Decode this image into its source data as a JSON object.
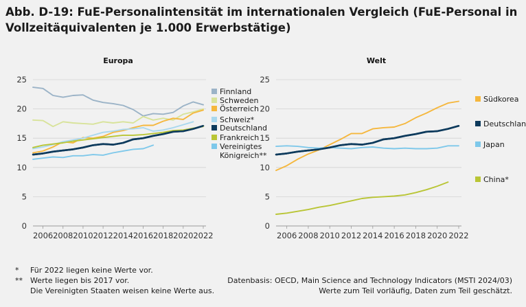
{
  "title": "Abb. D-19: FuE-Personalintensität im internationalen Vergleich (FuE-Personal in Vollzeitäquivalenten je 1.000 Erwerbstätige)",
  "chart_data": [
    {
      "type": "line",
      "title": "Europa",
      "x": [
        2005,
        2006,
        2007,
        2008,
        2009,
        2010,
        2011,
        2012,
        2013,
        2014,
        2015,
        2016,
        2017,
        2018,
        2019,
        2020,
        2021,
        2022
      ],
      "x_ticks": [
        "2006",
        "2008",
        "2010",
        "2012",
        "2014",
        "2016",
        "2018",
        "2020",
        "2022"
      ],
      "ylim": [
        0,
        25
      ],
      "y_ticks": [
        "0",
        "5",
        "10",
        "15",
        "20",
        "25"
      ],
      "grid": true,
      "legend": "right",
      "series": [
        {
          "name": "Finnland",
          "color": "#9bb3c7",
          "values": [
            23.7,
            23.5,
            22.3,
            22.0,
            22.3,
            22.4,
            21.5,
            21.1,
            20.9,
            20.6,
            19.9,
            18.8,
            19.2,
            19.1,
            19.4,
            20.5,
            21.2,
            20.7
          ]
        },
        {
          "name": "Schweden",
          "color": "#d8e39a",
          "values": [
            18.1,
            18.0,
            17.0,
            17.8,
            17.6,
            17.5,
            17.4,
            17.8,
            17.6,
            17.8,
            17.6,
            18.7,
            18.1,
            18.4,
            18.1,
            19.1,
            19.5,
            20.0
          ]
        },
        {
          "name": "Österreich",
          "color": "#f5b73d",
          "values": [
            12.5,
            12.8,
            13.5,
            14.4,
            14.2,
            15.1,
            15.0,
            15.3,
            16.0,
            16.3,
            16.8,
            17.2,
            17.2,
            17.9,
            18.4,
            18.2,
            19.3,
            19.8
          ]
        },
        {
          "name": "Schweiz*",
          "color": "#a9d8ee",
          "values": [
            13.2,
            13.5,
            13.9,
            14.4,
            14.7,
            15.0,
            15.5,
            16.0,
            16.2,
            16.5,
            16.6,
            16.8,
            16.2,
            16.4,
            16.8,
            17.3,
            17.8,
            null
          ]
        },
        {
          "name": "Deutschland",
          "color": "#0d3a5c",
          "values": [
            12.2,
            12.4,
            12.7,
            12.9,
            13.1,
            13.4,
            13.8,
            14.0,
            13.9,
            14.2,
            14.8,
            15.0,
            15.4,
            15.7,
            16.1,
            16.2,
            16.6,
            17.1
          ]
        },
        {
          "name": "Frankreich",
          "color": "#b9c535",
          "values": [
            13.4,
            13.8,
            14.0,
            14.2,
            14.5,
            14.7,
            14.9,
            15.1,
            15.3,
            15.5,
            15.5,
            15.6,
            15.8,
            16.0,
            16.3,
            16.4,
            16.7,
            17.0
          ]
        },
        {
          "name": "Vereinigtes Königreich**",
          "color": "#7ec8ea",
          "values": [
            11.4,
            11.6,
            11.8,
            11.7,
            12.0,
            12.0,
            12.2,
            12.1,
            12.5,
            12.8,
            13.1,
            13.2,
            13.8,
            null,
            null,
            null,
            null,
            null
          ]
        }
      ],
      "legend_labels": [
        [
          "Finnland"
        ],
        [
          "Schweden"
        ],
        [
          "Österreich"
        ],
        [
          "Schweiz*"
        ],
        [
          "Deutschland"
        ],
        [
          "Frankreich"
        ],
        [
          "Vereinigtes",
          "Königreich**"
        ]
      ]
    },
    {
      "type": "line",
      "title": "Welt",
      "x": [
        2005,
        2006,
        2007,
        2008,
        2009,
        2010,
        2011,
        2012,
        2013,
        2014,
        2015,
        2016,
        2017,
        2018,
        2019,
        2020,
        2021,
        2022
      ],
      "x_ticks": [
        "2006",
        "2008",
        "2010",
        "2012",
        "2014",
        "2016",
        "2018",
        "2020",
        "2022"
      ],
      "ylim": [
        0,
        25
      ],
      "y_ticks": [
        "0",
        "5",
        "10",
        "15",
        "20",
        "25"
      ],
      "grid": true,
      "legend": "right",
      "series": [
        {
          "name": "Südkorea",
          "color": "#f5b73d",
          "values": [
            9.5,
            10.3,
            11.4,
            12.3,
            13.0,
            13.9,
            14.8,
            15.8,
            15.8,
            16.6,
            16.8,
            16.9,
            17.5,
            18.5,
            19.3,
            20.2,
            21.0,
            21.3
          ]
        },
        {
          "name": "Deutschland",
          "color": "#0d3a5c",
          "values": [
            12.2,
            12.4,
            12.7,
            12.9,
            13.1,
            13.4,
            13.8,
            14.0,
            13.9,
            14.2,
            14.8,
            15.0,
            15.4,
            15.7,
            16.1,
            16.2,
            16.6,
            17.1
          ]
        },
        {
          "name": "Japan",
          "color": "#7ec8ea",
          "values": [
            13.6,
            13.7,
            13.6,
            13.4,
            13.3,
            13.4,
            13.3,
            13.2,
            13.4,
            13.5,
            13.3,
            13.2,
            13.3,
            13.2,
            13.2,
            13.3,
            13.7,
            13.7
          ]
        },
        {
          "name": "China*",
          "color": "#b9c535",
          "values": [
            2.0,
            2.2,
            2.5,
            2.8,
            3.2,
            3.5,
            3.9,
            4.3,
            4.7,
            4.9,
            5.0,
            5.1,
            5.3,
            5.7,
            6.2,
            6.8,
            7.5,
            null
          ]
        }
      ],
      "legend_labels": [
        [
          "Südkorea"
        ],
        [
          "Deutschland"
        ],
        [
          "Japan"
        ],
        [
          "China*"
        ]
      ]
    }
  ],
  "footnotes": [
    {
      "mark": "*",
      "text": "Für 2022 liegen keine Werte vor."
    },
    {
      "mark": "**",
      "text": "Werte liegen bis 2017 vor."
    },
    {
      "mark": "",
      "text": "Die Vereinigten Staaten weisen keine Werte aus."
    }
  ],
  "source": {
    "line1": "Datenbasis: OECD, Main Science and Technology Indicators (MSTI 2024/03)",
    "line2": "Werte zum Teil vorläufig, Daten zum Teil geschätzt."
  }
}
